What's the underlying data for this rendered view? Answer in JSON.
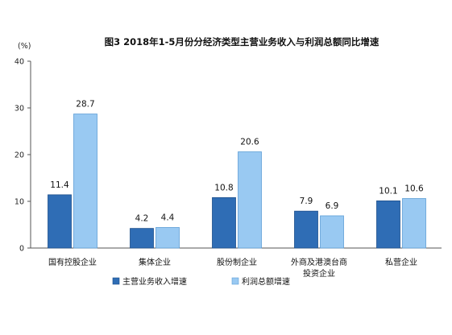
{
  "chart_data": {
    "type": "bar",
    "title": "图3  2018年1-5月份分经济类型主营业务收入与利润总额同比增速",
    "ylabel": "(%)",
    "ylim": [
      0,
      40
    ],
    "yticks": [
      "0",
      "10",
      "20",
      "30",
      "40"
    ],
    "categories": [
      [
        "国有控股企业"
      ],
      [
        "集体企业"
      ],
      [
        "股份制企业"
      ],
      [
        "外商及港澳台商",
        "投资企业"
      ],
      [
        "私营企业"
      ]
    ],
    "series": [
      {
        "name": "主营业务收入增速",
        "color": "#2f6db5",
        "values": [
          11.4,
          4.2,
          10.8,
          7.9,
          10.1
        ]
      },
      {
        "name": "利润总额增速",
        "color": "#99c9f2",
        "values": [
          28.7,
          4.4,
          20.6,
          6.9,
          10.6
        ]
      }
    ],
    "legend_position": "bottom",
    "grid": false
  }
}
